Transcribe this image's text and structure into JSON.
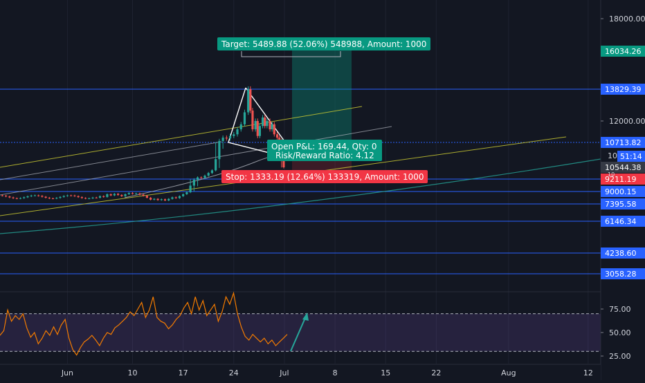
{
  "chart_data": {
    "type": "candlestick",
    "y_axis": {
      "ticks": [
        {
          "label": "18000.00",
          "value": 18000
        },
        {
          "label": "12000.00",
          "value": 12000
        },
        {
          "label": "9000.15",
          "value": 9000.15
        },
        {
          "label": "7395.58",
          "value": 7395.58
        },
        {
          "label": "6146.34",
          "value": 6146.34
        },
        {
          "label": "4238.60",
          "value": 4238.6
        },
        {
          "label": "3058.28",
          "value": 3058.28
        }
      ],
      "price_tags": [
        {
          "label": "16034.26",
          "value": 16034.26,
          "color": "#089981",
          "style": "filled"
        },
        {
          "label": "13829.39",
          "value": 13829.39,
          "color": "#2962ff",
          "style": "filled"
        },
        {
          "label": "10713.82",
          "value": 10713.82,
          "color": "#2962ff",
          "style": "filled"
        },
        {
          "label": "51:14",
          "value": 10560,
          "color": "#2962ff",
          "style": "filled"
        },
        {
          "label": "10544.38",
          "value": 10544.38,
          "color": "#363a45",
          "style": "filled"
        },
        {
          "label": "9211.19",
          "value": 9211.19,
          "color": "#f23645",
          "style": "filled"
        },
        {
          "label": "9000.15",
          "value": 9000.15,
          "color": "#2962ff",
          "style": "filled"
        },
        {
          "label": "7395.58",
          "value": 7395.58,
          "color": "#2962ff",
          "style": "filled"
        },
        {
          "label": "6146.34",
          "value": 6146.34,
          "color": "#2962ff",
          "style": "filled"
        },
        {
          "label": "4238.60",
          "value": 4238.6,
          "color": "#2962ff",
          "style": "filled"
        },
        {
          "label": "3058.28",
          "value": 3058.28,
          "color": "#2962ff",
          "style": "filled"
        }
      ],
      "partial_labels": [
        "10",
        "10"
      ]
    },
    "x_axis": {
      "labels": [
        {
          "label": "Jun",
          "date": "2019-06-01"
        },
        {
          "label": "10",
          "date": "2019-06-10"
        },
        {
          "label": "17",
          "date": "2019-06-17"
        },
        {
          "label": "24",
          "date": "2019-06-24"
        },
        {
          "label": "Jul",
          "date": "2019-07-01"
        },
        {
          "label": "8",
          "date": "2019-07-08"
        },
        {
          "label": "15",
          "date": "2019-07-15"
        },
        {
          "label": "22",
          "date": "2019-07-22"
        },
        {
          "label": "Aug",
          "date": "2019-08-01"
        },
        {
          "label": "12",
          "date": "2019-08-12"
        }
      ]
    },
    "horizontal_levels": [
      13829.39,
      10713.82,
      9211.19,
      9000.15,
      7395.58,
      6146.34,
      4238.6,
      3058.28
    ],
    "series": [
      {
        "kind": "ohlc",
        "colors": {
          "up": "#26a69a",
          "down": "#ef5350"
        },
        "points": [
          [
            5.0,
            8200
          ],
          [
            5.5,
            8400
          ],
          [
            6.0,
            8300
          ],
          [
            6.5,
            8650
          ],
          [
            7.0,
            8500
          ],
          [
            7.5,
            8700
          ],
          [
            8.0,
            8550
          ],
          [
            8.5,
            8400
          ],
          [
            9.0,
            8650
          ],
          [
            9.5,
            8800
          ],
          [
            10.0,
            8700
          ],
          [
            10.5,
            8750
          ],
          [
            11.0,
            8600
          ],
          [
            11.5,
            8450
          ],
          [
            12.0,
            8200
          ],
          [
            12.5,
            7950
          ],
          [
            13.0,
            8050
          ],
          [
            13.5,
            7900
          ],
          [
            14.0,
            8000
          ],
          [
            14.5,
            7850
          ],
          [
            15.0,
            8050
          ],
          [
            15.5,
            8250
          ],
          [
            16.0,
            8150
          ],
          [
            16.5,
            8400
          ],
          [
            17.0,
            8650
          ],
          [
            17.5,
            8900
          ],
          [
            18.0,
            9100
          ],
          [
            18.5,
            9200
          ],
          [
            19.0,
            9400
          ],
          [
            19.5,
            9350
          ],
          [
            20.0,
            9600
          ],
          [
            20.5,
            9900
          ],
          [
            21.0,
            10200
          ],
          [
            21.5,
            10600
          ],
          [
            22.0,
            10800
          ],
          [
            22.5,
            11000
          ],
          [
            23.0,
            10950
          ],
          [
            23.5,
            11100
          ],
          [
            24.0,
            11200
          ],
          [
            24.5,
            11500
          ],
          [
            25.0,
            11800
          ],
          [
            25.5,
            12500
          ],
          [
            26.0,
            13829
          ],
          [
            26.3,
            12600
          ],
          [
            26.6,
            11500
          ],
          [
            27.0,
            12000
          ],
          [
            27.3,
            11100
          ],
          [
            27.6,
            11700
          ],
          [
            28.0,
            12200
          ],
          [
            28.3,
            11700
          ],
          [
            28.6,
            12000
          ],
          [
            29.0,
            11500
          ],
          [
            29.3,
            11800
          ],
          [
            29.6,
            11200
          ],
          [
            30.0,
            11000
          ],
          [
            30.3,
            10800
          ],
          [
            30.6,
            10650
          ],
          [
            30.9,
            10544
          ]
        ],
        "date_origin": "2019-05-31"
      }
    ],
    "trade_setup": {
      "target_label": "Target: 5489.88 (52.06%) 548988, Amount: 1000",
      "stop_label": "Stop: 1333.19 (12.64%) 133319, Amount: 1000",
      "pnl_label": "Open P&L: 169.44, Qty: 0",
      "ratio_label": "Risk/Reward Ratio: 4.12",
      "target_color": "#089981",
      "stop_color": "#f23645"
    },
    "rsi": {
      "ticks": [
        {
          "label": "75.00",
          "value": 75
        },
        {
          "label": "50.00",
          "value": 50
        },
        {
          "label": "25.00",
          "value": 25
        }
      ],
      "overbought": 70,
      "oversold": 30,
      "line_color": "#f57c00",
      "band_color": "#7e57c2",
      "values": [
        47,
        52,
        74,
        62,
        68,
        64,
        70,
        55,
        45,
        50,
        38,
        44,
        52,
        47,
        56,
        48,
        58,
        64,
        44,
        32,
        26,
        34,
        40,
        43,
        47,
        42,
        36,
        44,
        50,
        48,
        55,
        58,
        62,
        66,
        72,
        68,
        75,
        82,
        66,
        74,
        88,
        66,
        62,
        60,
        54,
        58,
        64,
        68,
        76,
        82,
        70,
        88,
        74,
        84,
        68,
        74,
        80,
        62,
        72,
        88,
        80,
        92,
        70,
        56,
        46,
        42,
        48,
        44,
        40,
        44,
        38,
        42,
        36,
        40,
        44,
        48
      ]
    },
    "colors": {
      "background": "#131722",
      "grid": "#1e2230",
      "level_line": "#2962ff",
      "channel": "#c8c832",
      "ma_teal": "#26a69a",
      "ma_white": "#b2b5be",
      "arrow": "#26a69a"
    }
  }
}
